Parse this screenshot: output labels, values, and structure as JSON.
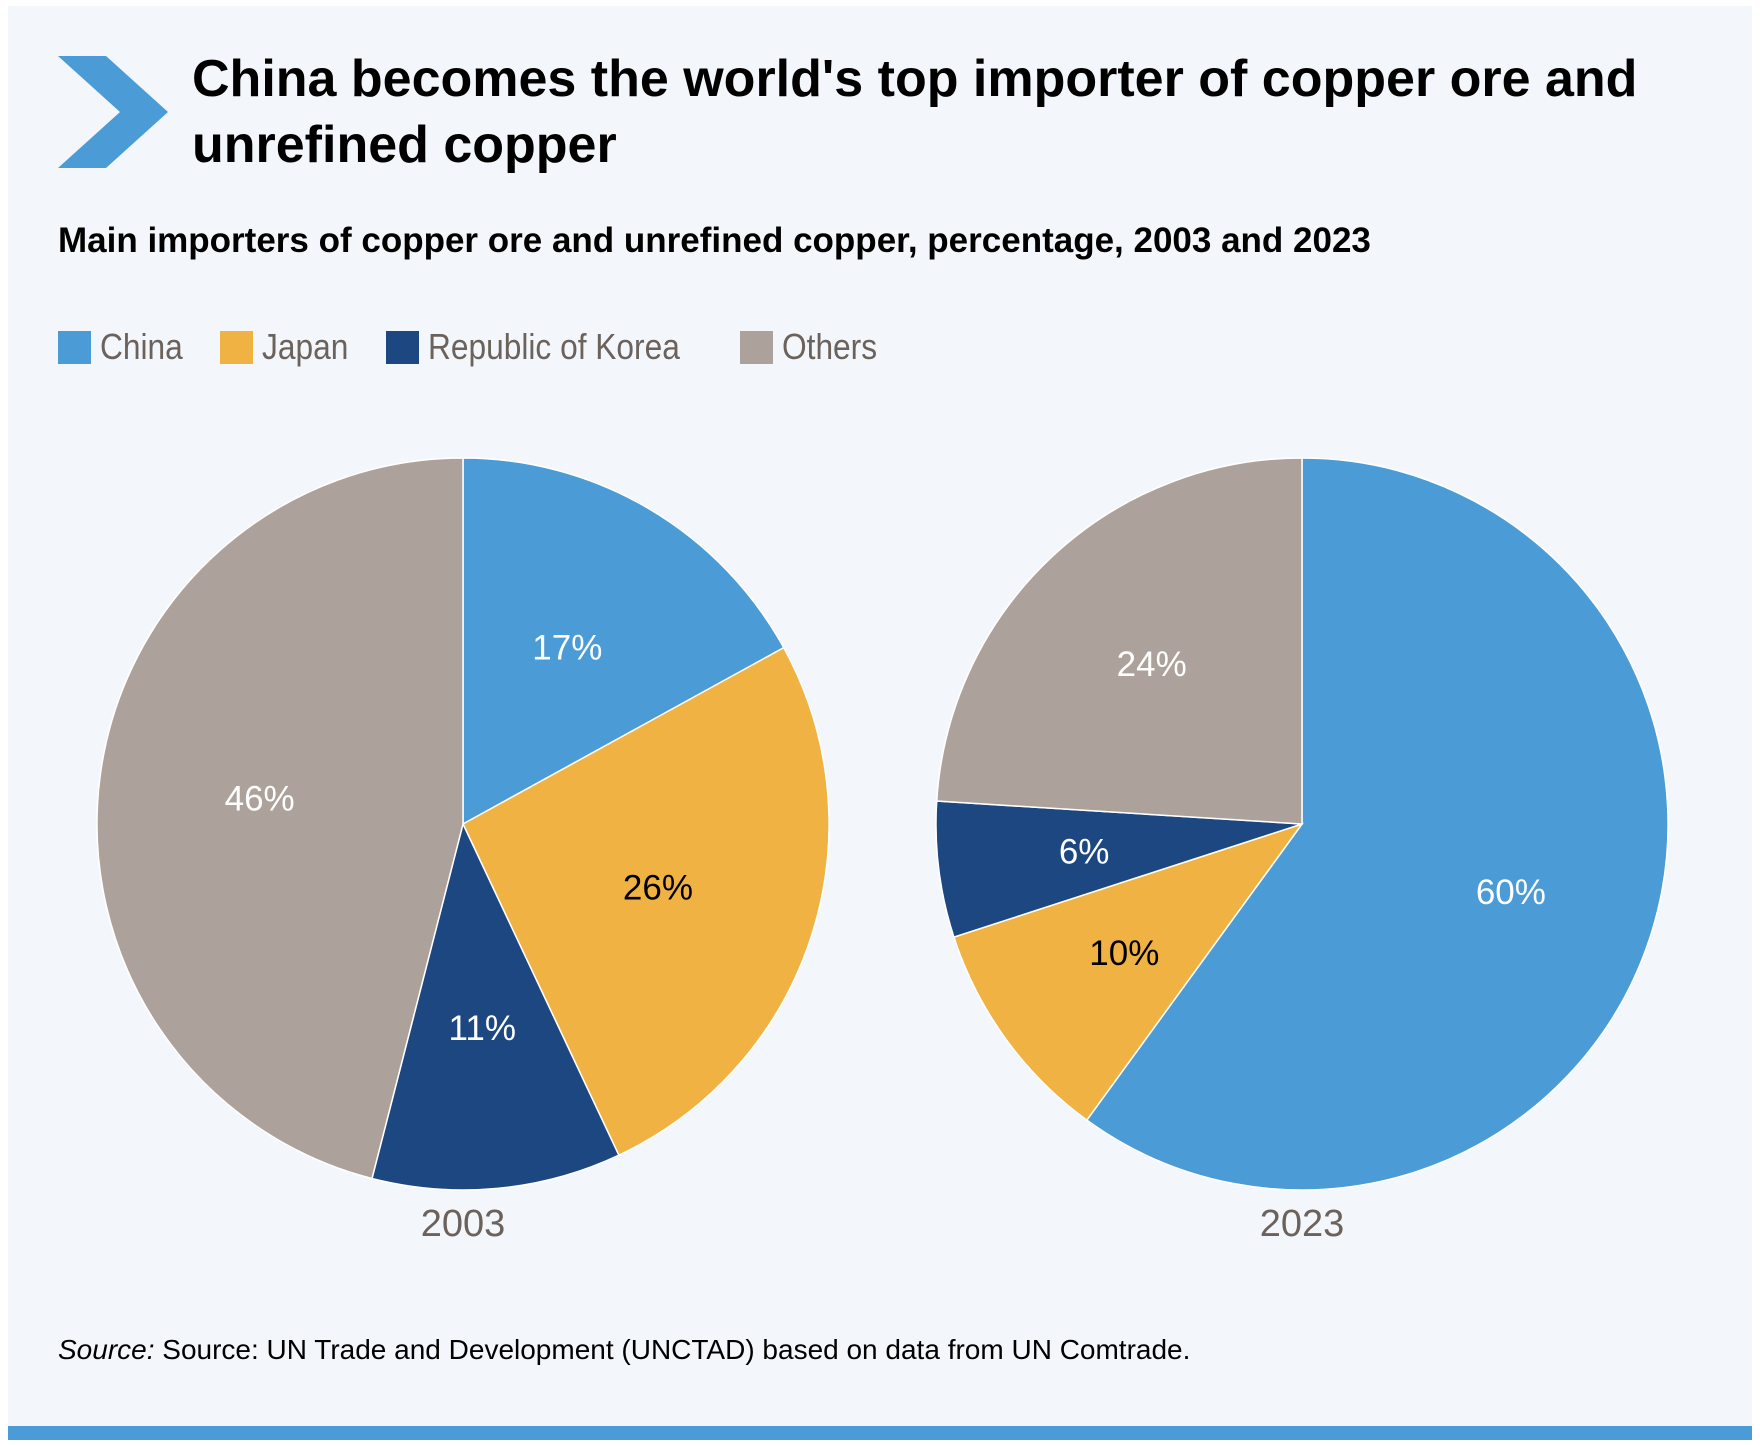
{
  "title": "China becomes the world's top importer of copper ore and unrefined copper",
  "subtitle": "Main importers of copper ore and unrefined copper, percentage, 2003 and 2023",
  "legend": [
    {
      "label": "China",
      "color": "#4a9bd6"
    },
    {
      "label": "Japan",
      "color": "#f0b243"
    },
    {
      "label": "Republic of Korea",
      "color": "#1c4781"
    },
    {
      "label": "Others",
      "color": "#ada29b"
    }
  ],
  "chart_data": [
    {
      "type": "pie",
      "xlabel": "2003",
      "categories": [
        "China",
        "Japan",
        "Republic of Korea",
        "Others"
      ],
      "values": [
        17,
        26,
        11,
        46
      ],
      "data_labels": [
        "17%",
        "26%",
        "11%",
        "46%"
      ],
      "colors": [
        "#4a9bd6",
        "#f0b243",
        "#1c4781",
        "#ada29b"
      ],
      "label_colors": [
        "#ffffff",
        "#000000",
        "#ffffff",
        "#ffffff"
      ]
    },
    {
      "type": "pie",
      "xlabel": "2023",
      "categories": [
        "China",
        "Japan",
        "Republic of Korea",
        "Others"
      ],
      "values": [
        60,
        10,
        6,
        24
      ],
      "data_labels": [
        "60%",
        "10%",
        "6%",
        "24%"
      ],
      "colors": [
        "#4a9bd6",
        "#f0b243",
        "#1c4781",
        "#ada29b"
      ],
      "label_colors": [
        "#ffffff",
        "#000000",
        "#ffffff",
        "#ffffff"
      ]
    }
  ],
  "source": {
    "prefix": "Source:",
    "text": " Source: UN Trade and Development (UNCTAD) based on data from UN Comtrade."
  }
}
